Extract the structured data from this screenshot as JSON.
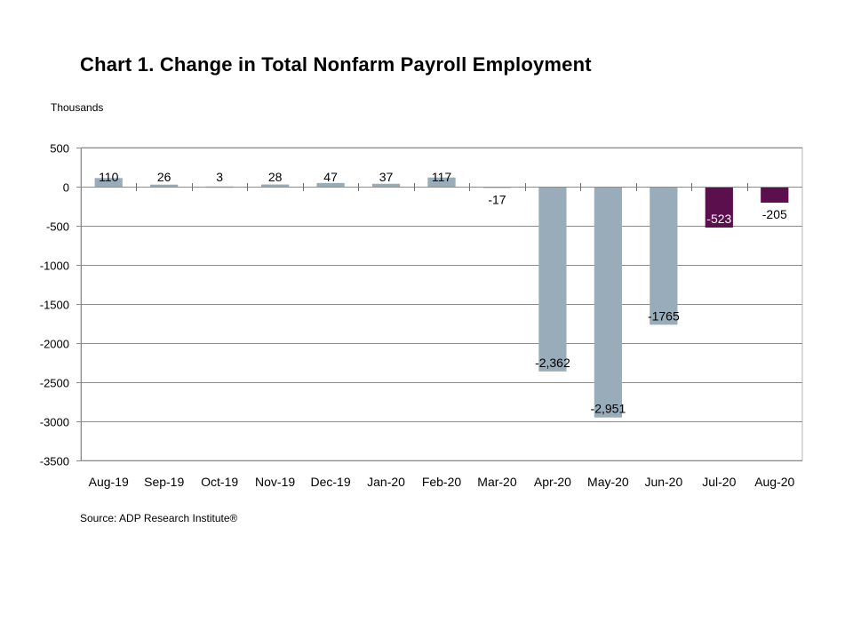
{
  "chart_data": {
    "type": "bar",
    "title": "Chart 1. Change in Total Nonfarm Payroll Employment",
    "ylabel": "Thousands",
    "xlabel": "",
    "source": "Source: ADP Research Institute®",
    "ylim": [
      -3500,
      500
    ],
    "yticks": [
      500,
      0,
      -500,
      -1000,
      -1500,
      -2000,
      -2500,
      -3000,
      -3500
    ],
    "grid": true,
    "legend": "none",
    "categories": [
      "Aug-19",
      "Sep-19",
      "Oct-19",
      "Nov-19",
      "Dec-19",
      "Jan-20",
      "Feb-20",
      "Mar-20",
      "Apr-20",
      "May-20",
      "Jun-20",
      "Jul-20",
      "Aug-20"
    ],
    "values": [
      110,
      26,
      3,
      28,
      47,
      37,
      117,
      -17,
      -2362,
      -2951,
      -1765,
      -523,
      -205
    ],
    "data_labels": [
      "110",
      "26",
      "3",
      "28",
      "47",
      "37",
      "117",
      "-17",
      "-2,362",
      "-2,951",
      "-1765",
      "-523",
      "-205"
    ],
    "colors": {
      "default_bar": "#98adb9",
      "highlight_bar": "#5c0f4d",
      "gridline": "#8c8c8c",
      "axis": "#8c8c8c"
    },
    "highlighted_categories": [
      "Jul-20",
      "Aug-20"
    ]
  }
}
